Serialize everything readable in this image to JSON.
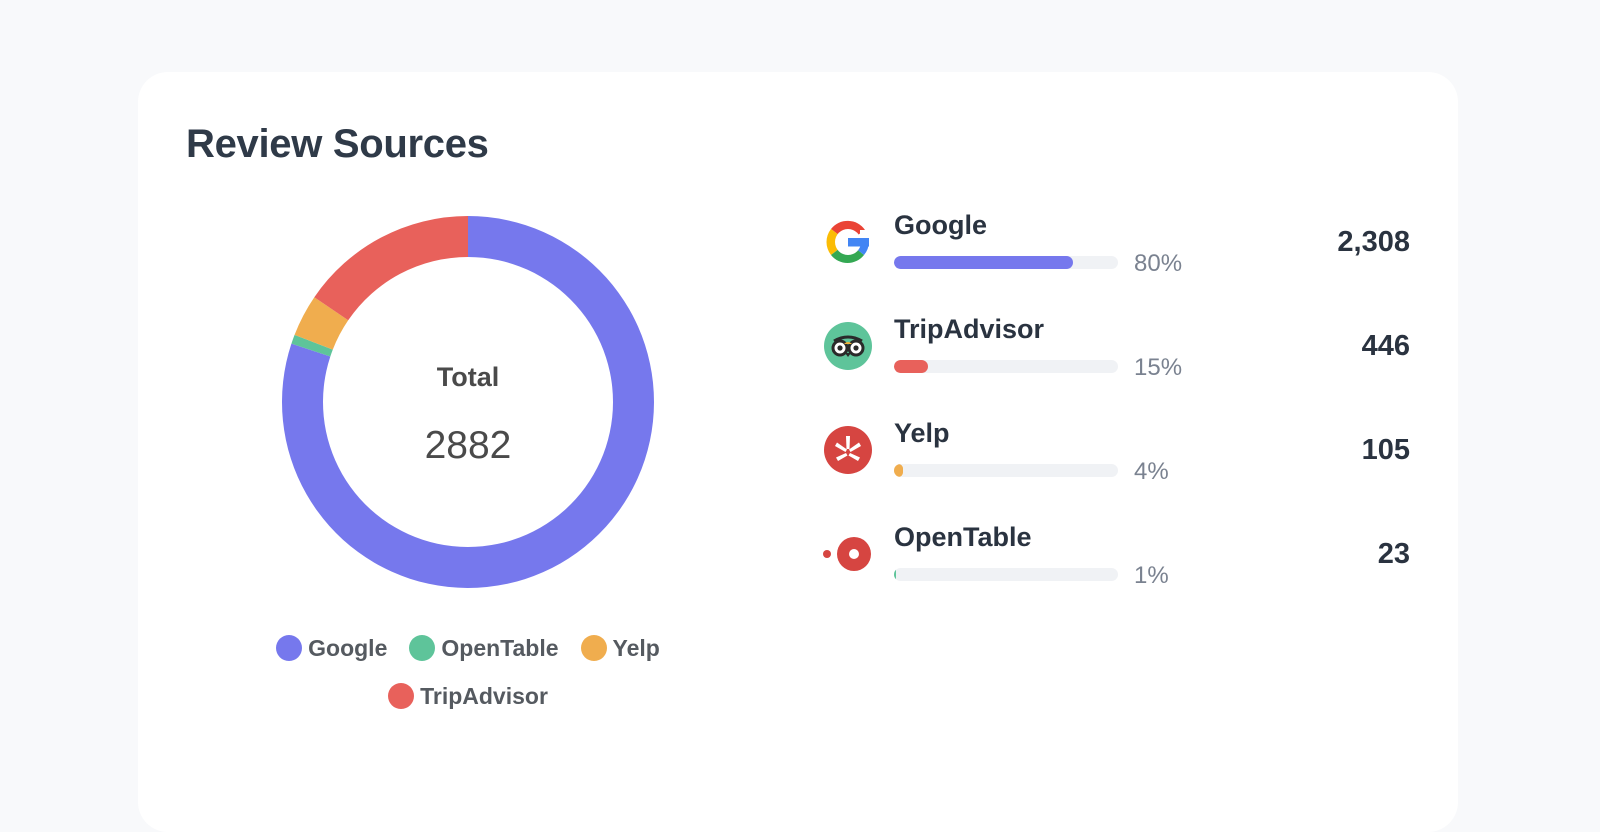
{
  "card": {
    "title": "Review Sources"
  },
  "chart_data": {
    "type": "pie",
    "donut": true,
    "categories": [
      "Google",
      "OpenTable",
      "Yelp",
      "TripAdvisor"
    ],
    "values": [
      2308,
      23,
      105,
      446
    ],
    "colors": [
      "#7678ed",
      "#5ec49a",
      "#f0ad4e",
      "#e8615b"
    ],
    "center_title": "Total",
    "center_value": "2882",
    "legend": [
      "Google",
      "OpenTable",
      "Yelp",
      "TripAdvisor"
    ],
    "legend_position": "bottom"
  },
  "sources": [
    {
      "name": "Google",
      "count": "2,308",
      "percent_label": "80%",
      "percent": 80,
      "color": "#7678ed",
      "icon": "google-icon"
    },
    {
      "name": "TripAdvisor",
      "count": "446",
      "percent_label": "15%",
      "percent": 15,
      "color": "#e8615b",
      "icon": "tripadvisor-icon"
    },
    {
      "name": "Yelp",
      "count": "105",
      "percent_label": "4%",
      "percent": 4,
      "color": "#f0ad4e",
      "icon": "yelp-icon"
    },
    {
      "name": "OpenTable",
      "count": "23",
      "percent_label": "1%",
      "percent": 1,
      "color": "#5ec49a",
      "icon": "opentable-icon"
    }
  ]
}
